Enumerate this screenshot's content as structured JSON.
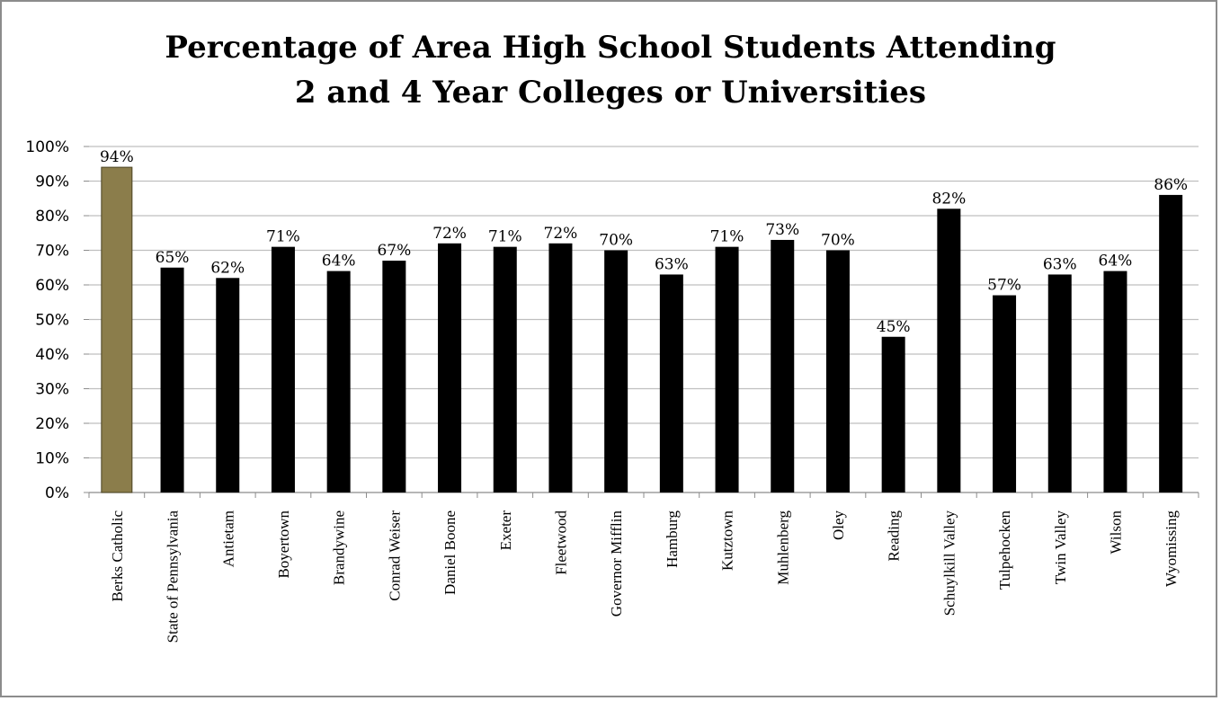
{
  "chart_data": {
    "type": "bar",
    "title_lines": [
      "Percentage of Area High School Students Attending",
      "2 and 4 Year Colleges or Universities"
    ],
    "categories": [
      "Berks Catholic",
      "State of Pennsylvania",
      "Antietam",
      "Boyertown",
      "Brandywine",
      "Conrad Weiser",
      "Daniel Boone",
      "Exeter",
      "Fleetwood",
      "Governor Mifflin",
      "Hamburg",
      "Kutztown",
      "Muhlenberg",
      "Oley",
      "Reading",
      "Schuylkill Valley",
      "Tulpehocken",
      "Twin Valley",
      "Wilson",
      "Wyomissing"
    ],
    "values": [
      94,
      65,
      62,
      71,
      64,
      67,
      72,
      71,
      72,
      70,
      63,
      71,
      73,
      70,
      45,
      82,
      57,
      63,
      64,
      86
    ],
    "value_labels": [
      "94%",
      "65%",
      "62%",
      "71%",
      "64%",
      "67%",
      "72%",
      "71%",
      "72%",
      "70%",
      "63%",
      "71%",
      "73%",
      "70%",
      "45%",
      "82%",
      "57%",
      "63%",
      "64%",
      "86%"
    ],
    "ylim": [
      0,
      100
    ],
    "yticks": [
      0,
      10,
      20,
      30,
      40,
      50,
      60,
      70,
      80,
      90,
      100
    ],
    "ytick_labels": [
      "0%",
      "10%",
      "20%",
      "30%",
      "40%",
      "50%",
      "60%",
      "70%",
      "80%",
      "90%",
      "100%"
    ],
    "grid": true,
    "legend": "none",
    "colors": {
      "highlight": "#8b7d4b",
      "highlight_border": "#4a4222",
      "bar": "#000000",
      "grid": "#bfbfbf"
    },
    "highlight_index": 0
  }
}
